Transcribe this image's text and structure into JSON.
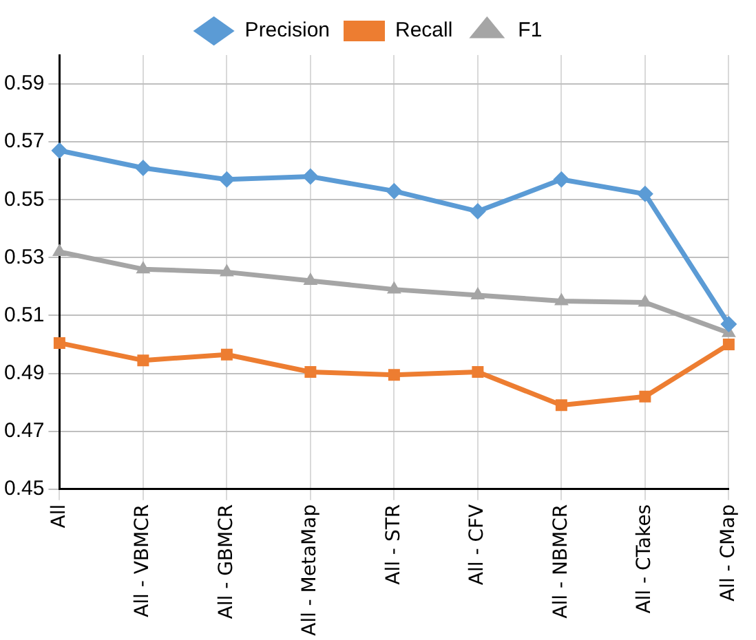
{
  "chart_data": {
    "type": "line",
    "categories": [
      "All",
      "All - VBMCR",
      "All - GBMCR",
      "All - MetaMap",
      "All - STR",
      "All - CFV",
      "All - NBMCR",
      "All - CTakes",
      "All - CMap"
    ],
    "series": [
      {
        "name": "Precision",
        "color": "#5b9bd5",
        "marker": "diamond",
        "values": [
          0.567,
          0.561,
          0.557,
          0.558,
          0.553,
          0.546,
          0.557,
          0.552,
          0.507
        ]
      },
      {
        "name": "Recall",
        "color": "#ed7d31",
        "marker": "square",
        "values": [
          0.5005,
          0.4945,
          0.4965,
          0.4905,
          0.4895,
          0.4905,
          0.479,
          0.482,
          0.5
        ]
      },
      {
        "name": "F1",
        "color": "#a5a5a5",
        "marker": "triangle",
        "values": [
          0.532,
          0.526,
          0.525,
          0.522,
          0.519,
          0.517,
          0.515,
          0.5145,
          0.504
        ]
      }
    ],
    "ylim": [
      0.45,
      0.6
    ],
    "yticks": [
      0.45,
      0.47,
      0.49,
      0.51,
      0.53,
      0.55,
      0.57,
      0.59
    ],
    "grid": true,
    "legend": "top",
    "line_style": "solid"
  }
}
